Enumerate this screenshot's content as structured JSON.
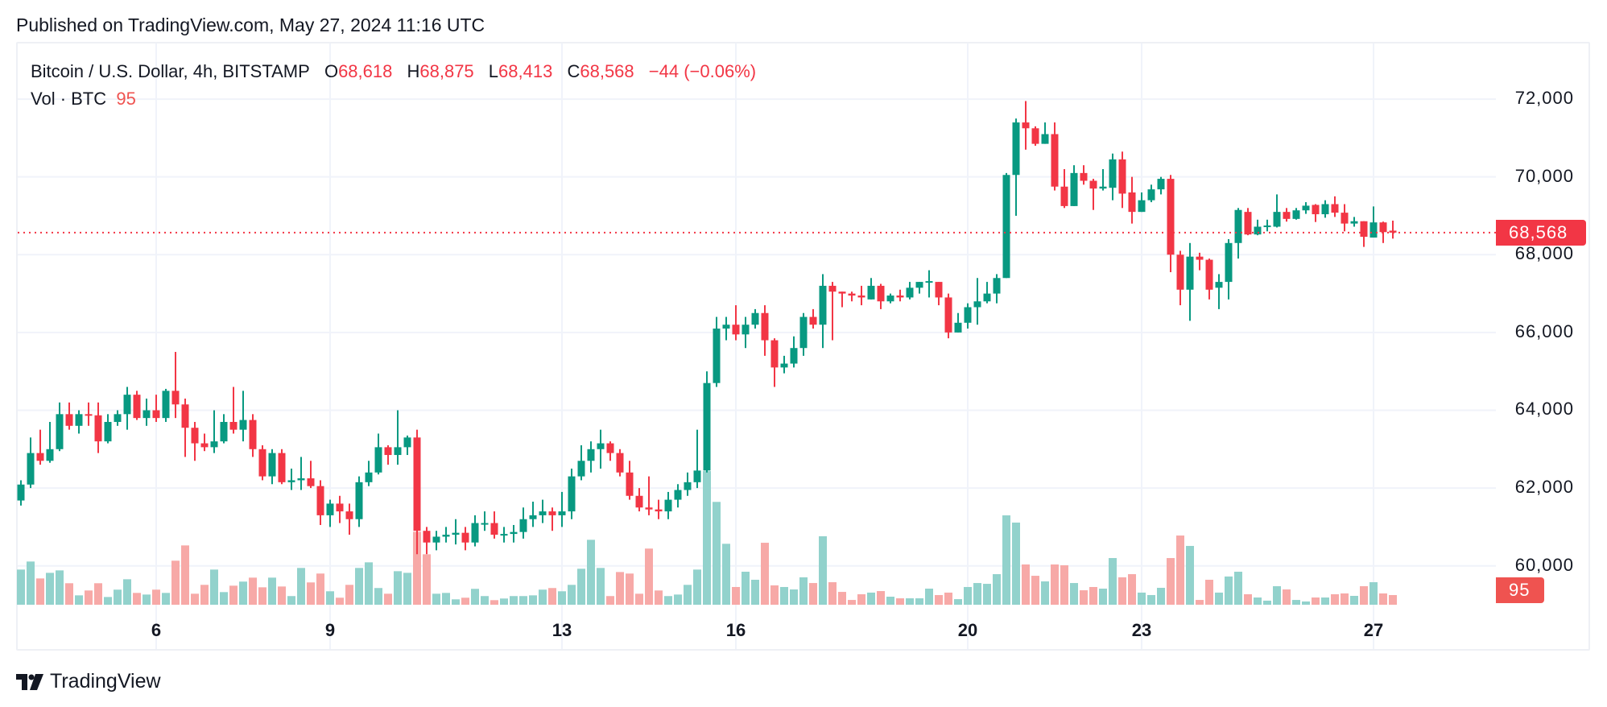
{
  "header": {
    "published": "Published on TradingView.com, May 27, 2024 11:16 UTC"
  },
  "legend": {
    "symbol": "Bitcoin / U.S. Dollar, 4h, BITSTAMP",
    "o_label": "O",
    "o": "68,618",
    "h_label": "H",
    "h": "68,875",
    "l_label": "L",
    "l": "68,413",
    "c_label": "C",
    "c": "68,568",
    "change": "−44 (−0.06%)",
    "vol_label": "Vol · BTC",
    "vol": "95"
  },
  "price_axis": {
    "labels": [
      "72,000",
      "70,000",
      "68,000",
      "66,000",
      "64,000",
      "62,000",
      "60,000"
    ],
    "last_price_label": "68,568",
    "last_volume_label": "95"
  },
  "time_axis": {
    "labels": [
      "6",
      "9",
      "13",
      "16",
      "20",
      "23",
      "27"
    ]
  },
  "brand": {
    "name": "TradingView",
    "logo_icon": "tradingview-logo-icon"
  },
  "colors": {
    "up": "#089981",
    "down": "#F23645",
    "up_volume": "#92d2cc",
    "down_volume": "#f7a9a7",
    "volume_badge": "#ef5350",
    "grid": "#f0f3fa"
  },
  "chart_data": {
    "type": "candlestick",
    "symbol": "Bitcoin / U.S. Dollar",
    "interval": "4h",
    "exchange": "BITSTAMP",
    "ylim": [
      59000,
      73430
    ],
    "y_ticks": [
      72000,
      70000,
      68000,
      66000,
      64000,
      62000,
      60000
    ],
    "volume_ylim": [
      0,
      1580
    ],
    "last_price": 68568,
    "last_volume": 95,
    "grid": true,
    "x_ticks": [
      {
        "label": "6",
        "date": "2024-05-06 00:00"
      },
      {
        "label": "9",
        "date": "2024-05-09 00:00"
      },
      {
        "label": "13",
        "date": "2024-05-13 00:00"
      },
      {
        "label": "16",
        "date": "2024-05-16 00:00"
      },
      {
        "label": "20",
        "date": "2024-05-20 00:00"
      },
      {
        "label": "23",
        "date": "2024-05-23 00:00"
      },
      {
        "label": "27",
        "date": "2024-05-27 00:00"
      }
    ],
    "columns": [
      "time",
      "open",
      "high",
      "low",
      "close",
      "volume"
    ],
    "candles": [
      [
        "2024-05-03 16:00",
        61680,
        62200,
        61550,
        62090,
        345
      ],
      [
        "2024-05-03 20:00",
        62090,
        63300,
        62000,
        62900,
        424
      ],
      [
        "2024-05-04 00:00",
        62900,
        63500,
        62600,
        62700,
        258
      ],
      [
        "2024-05-04 04:00",
        62700,
        63700,
        62650,
        63000,
        313
      ],
      [
        "2024-05-04 08:00",
        63000,
        64200,
        62950,
        63900,
        337
      ],
      [
        "2024-05-04 12:00",
        63900,
        64200,
        63500,
        63600,
        211
      ],
      [
        "2024-05-04 16:00",
        63600,
        64000,
        63400,
        63900,
        92
      ],
      [
        "2024-05-04 20:00",
        63900,
        64200,
        63600,
        63870,
        140
      ],
      [
        "2024-05-05 00:00",
        63870,
        64200,
        62900,
        63200,
        211
      ],
      [
        "2024-05-05 04:00",
        63200,
        63900,
        63150,
        63700,
        76
      ],
      [
        "2024-05-05 08:00",
        63700,
        64000,
        63600,
        63900,
        148
      ],
      [
        "2024-05-05 12:00",
        63900,
        64600,
        63500,
        64400,
        250
      ],
      [
        "2024-05-05 16:00",
        64400,
        64500,
        63750,
        63800,
        116
      ],
      [
        "2024-05-05 20:00",
        63800,
        64300,
        63600,
        64000,
        100
      ],
      [
        "2024-05-06 00:00",
        64000,
        64400,
        63700,
        63800,
        148
      ],
      [
        "2024-05-06 04:00",
        63800,
        64550,
        63700,
        64500,
        116
      ],
      [
        "2024-05-06 08:00",
        64500,
        65500,
        63800,
        64150,
        432
      ],
      [
        "2024-05-06 12:00",
        64150,
        64300,
        62800,
        63550,
        582
      ],
      [
        "2024-05-06 16:00",
        63550,
        63700,
        62700,
        63150,
        108
      ],
      [
        "2024-05-06 20:00",
        63150,
        63400,
        62950,
        63050,
        195
      ],
      [
        "2024-05-07 00:00",
        63050,
        64000,
        62900,
        63200,
        345
      ],
      [
        "2024-05-07 04:00",
        63200,
        63900,
        63150,
        63700,
        124
      ],
      [
        "2024-05-07 08:00",
        63700,
        64600,
        63400,
        63500,
        187
      ],
      [
        "2024-05-07 12:00",
        63500,
        64500,
        63200,
        63750,
        227
      ],
      [
        "2024-05-07 16:00",
        63750,
        63900,
        62800,
        63000,
        266
      ],
      [
        "2024-05-07 20:00",
        63000,
        63100,
        62200,
        62300,
        171
      ],
      [
        "2024-05-08 00:00",
        62300,
        63000,
        62100,
        62900,
        266
      ],
      [
        "2024-05-08 04:00",
        62900,
        63000,
        62100,
        62150,
        179
      ],
      [
        "2024-05-08 08:00",
        62150,
        62500,
        61950,
        62200,
        85
      ],
      [
        "2024-05-08 12:00",
        62200,
        62800,
        61950,
        62250,
        361
      ],
      [
        "2024-05-08 16:00",
        62250,
        62700,
        62000,
        62050,
        219
      ],
      [
        "2024-05-08 20:00",
        62050,
        62200,
        61050,
        61300,
        306
      ],
      [
        "2024-05-09 00:00",
        61300,
        61700,
        61000,
        61600,
        132
      ],
      [
        "2024-05-09 04:00",
        61600,
        61800,
        61100,
        61400,
        69
      ],
      [
        "2024-05-09 08:00",
        61400,
        61600,
        60800,
        61200,
        195
      ],
      [
        "2024-05-09 12:00",
        61200,
        62300,
        61000,
        62150,
        361
      ],
      [
        "2024-05-09 16:00",
        62150,
        62700,
        62050,
        62400,
        416
      ],
      [
        "2024-05-09 20:00",
        62400,
        63400,
        62350,
        63050,
        164
      ],
      [
        "2024-05-10 00:00",
        63050,
        63100,
        62600,
        62850,
        108
      ],
      [
        "2024-05-10 04:00",
        62850,
        64000,
        62600,
        63050,
        329
      ],
      [
        "2024-05-10 08:00",
        63050,
        63350,
        62850,
        63300,
        313
      ],
      [
        "2024-05-10 12:00",
        63300,
        63500,
        60300,
        60900,
        716
      ],
      [
        "2024-05-10 16:00",
        60900,
        61000,
        60300,
        60600,
        495
      ],
      [
        "2024-05-10 20:00",
        60600,
        60900,
        60400,
        60750,
        108
      ],
      [
        "2024-05-11 00:00",
        60750,
        61000,
        60600,
        60800,
        116
      ],
      [
        "2024-05-11 04:00",
        60800,
        61200,
        60550,
        60850,
        53
      ],
      [
        "2024-05-11 08:00",
        60850,
        61000,
        60400,
        60600,
        69
      ],
      [
        "2024-05-11 12:00",
        60600,
        61300,
        60500,
        61100,
        156
      ],
      [
        "2024-05-11 16:00",
        61100,
        61400,
        60900,
        61100,
        85
      ],
      [
        "2024-05-11 20:00",
        61100,
        61400,
        60700,
        60800,
        45
      ],
      [
        "2024-05-12 00:00",
        60800,
        61000,
        60600,
        60820,
        61
      ],
      [
        "2024-05-12 04:00",
        60820,
        61050,
        60600,
        60870,
        85
      ],
      [
        "2024-05-12 08:00",
        60870,
        61500,
        60700,
        61200,
        85
      ],
      [
        "2024-05-12 12:00",
        61200,
        61650,
        61000,
        61300,
        92
      ],
      [
        "2024-05-12 16:00",
        61300,
        61700,
        61100,
        61400,
        148
      ],
      [
        "2024-05-12 20:00",
        61400,
        61500,
        60900,
        61300,
        164
      ],
      [
        "2024-05-13 00:00",
        61300,
        61900,
        61000,
        61400,
        132
      ],
      [
        "2024-05-13 04:00",
        61400,
        62500,
        61200,
        62300,
        195
      ],
      [
        "2024-05-13 08:00",
        62300,
        63100,
        62200,
        62700,
        353
      ],
      [
        "2024-05-13 12:00",
        62700,
        63200,
        62400,
        63000,
        637
      ],
      [
        "2024-05-13 16:00",
        63000,
        63500,
        62500,
        63150,
        361
      ],
      [
        "2024-05-13 20:00",
        63150,
        63200,
        62700,
        62900,
        85
      ],
      [
        "2024-05-14 00:00",
        62900,
        63000,
        62300,
        62400,
        321
      ],
      [
        "2024-05-14 04:00",
        62400,
        62700,
        61700,
        61800,
        306
      ],
      [
        "2024-05-14 08:00",
        61800,
        62000,
        61400,
        61500,
        108
      ],
      [
        "2024-05-14 12:00",
        61500,
        62300,
        61300,
        61450,
        551
      ],
      [
        "2024-05-14 16:00",
        61450,
        61700,
        61200,
        61400,
        140
      ],
      [
        "2024-05-14 20:00",
        61400,
        61900,
        61200,
        61700,
        85
      ],
      [
        "2024-05-15 00:00",
        61700,
        62100,
        61500,
        61950,
        100
      ],
      [
        "2024-05-15 04:00",
        61950,
        62400,
        61800,
        62150,
        195
      ],
      [
        "2024-05-15 08:00",
        62150,
        63500,
        62000,
        62450,
        345
      ],
      [
        "2024-05-15 12:00",
        62450,
        65000,
        62400,
        64700,
        1311
      ],
      [
        "2024-05-15 16:00",
        64700,
        66400,
        64600,
        66100,
        1009
      ],
      [
        "2024-05-15 20:00",
        66100,
        66400,
        65800,
        66200,
        598
      ],
      [
        "2024-05-16 00:00",
        66200,
        66700,
        65800,
        65950,
        174
      ],
      [
        "2024-05-16 04:00",
        65950,
        66400,
        65600,
        66200,
        324
      ],
      [
        "2024-05-16 08:00",
        66200,
        66600,
        66100,
        66500,
        245
      ],
      [
        "2024-05-16 12:00",
        66500,
        66700,
        65400,
        65800,
        608
      ],
      [
        "2024-05-16 16:00",
        65800,
        65850,
        64600,
        65100,
        190
      ],
      [
        "2024-05-16 20:00",
        65100,
        65400,
        64950,
        65200,
        174
      ],
      [
        "2024-05-17 00:00",
        65200,
        65900,
        65100,
        65600,
        150
      ],
      [
        "2024-05-17 04:00",
        65600,
        66500,
        65400,
        66400,
        269
      ],
      [
        "2024-05-17 08:00",
        66400,
        66600,
        66100,
        66200,
        213
      ],
      [
        "2024-05-17 12:00",
        66200,
        67500,
        65600,
        67200,
        672
      ],
      [
        "2024-05-17 16:00",
        67200,
        67300,
        65800,
        67050,
        221
      ],
      [
        "2024-05-17 20:00",
        67050,
        67050,
        66650,
        67000,
        126
      ],
      [
        "2024-05-18 00:00",
        67000,
        67050,
        66800,
        66950,
        47
      ],
      [
        "2024-05-18 04:00",
        66950,
        67200,
        66700,
        66900,
        103
      ],
      [
        "2024-05-18 08:00",
        66850,
        67400,
        66850,
        67200,
        119
      ],
      [
        "2024-05-18 12:00",
        67200,
        67250,
        66600,
        66800,
        134
      ],
      [
        "2024-05-18 16:00",
        66800,
        67000,
        66750,
        66950,
        79
      ],
      [
        "2024-05-18 20:00",
        66950,
        67100,
        66800,
        66900,
        63
      ],
      [
        "2024-05-19 00:00",
        66900,
        67300,
        66850,
        67150,
        63
      ],
      [
        "2024-05-19 04:00",
        67150,
        67300,
        67000,
        67300,
        63
      ],
      [
        "2024-05-19 08:00",
        67300,
        67600,
        66900,
        67320,
        158
      ],
      [
        "2024-05-19 12:00",
        67300,
        67300,
        66700,
        66900,
        95
      ],
      [
        "2024-05-19 16:00",
        66900,
        67000,
        65850,
        66000,
        119
      ],
      [
        "2024-05-19 20:00",
        66000,
        66500,
        66000,
        66250,
        55
      ],
      [
        "2024-05-20 00:00",
        66250,
        66750,
        66100,
        66650,
        174
      ],
      [
        "2024-05-20 04:00",
        66650,
        67400,
        66200,
        66800,
        213
      ],
      [
        "2024-05-20 08:00",
        66800,
        67300,
        66750,
        67000,
        205
      ],
      [
        "2024-05-20 12:00",
        67000,
        67500,
        66750,
        67400,
        300
      ],
      [
        "2024-05-20 16:00",
        67400,
        70100,
        67400,
        70050,
        877
      ],
      [
        "2024-05-20 20:00",
        70050,
        71500,
        69000,
        71400,
        806
      ],
      [
        "2024-05-21 00:00",
        71400,
        71950,
        70700,
        71250,
        395
      ],
      [
        "2024-05-21 04:00",
        71250,
        71300,
        70800,
        70850,
        284
      ],
      [
        "2024-05-21 08:00",
        70850,
        71400,
        70850,
        71100,
        229
      ],
      [
        "2024-05-21 12:00",
        71100,
        71400,
        69650,
        69750,
        395
      ],
      [
        "2024-05-21 16:00",
        69750,
        70200,
        69200,
        69250,
        387
      ],
      [
        "2024-05-21 20:00",
        69250,
        70300,
        69250,
        70100,
        213
      ],
      [
        "2024-05-22 00:00",
        70100,
        70300,
        69800,
        69900,
        142
      ],
      [
        "2024-05-22 04:00",
        69900,
        69950,
        69150,
        69700,
        174
      ],
      [
        "2024-05-22 08:00",
        69700,
        70200,
        69650,
        69750,
        158
      ],
      [
        "2024-05-22 12:00",
        69720,
        70600,
        69400,
        70450,
        458
      ],
      [
        "2024-05-22 16:00",
        70450,
        70650,
        69200,
        69570,
        269
      ],
      [
        "2024-05-22 20:00",
        69600,
        70000,
        68800,
        69100,
        300
      ],
      [
        "2024-05-23 00:00",
        69100,
        69600,
        69100,
        69400,
        119
      ],
      [
        "2024-05-23 04:00",
        69400,
        69800,
        69350,
        69680,
        95
      ],
      [
        "2024-05-23 08:00",
        69680,
        70000,
        69550,
        69950,
        166
      ],
      [
        "2024-05-23 12:00",
        69950,
        70050,
        67550,
        68000,
        458
      ],
      [
        "2024-05-23 16:00",
        68000,
        68100,
        66700,
        67100,
        679
      ],
      [
        "2024-05-23 20:00",
        67100,
        68300,
        66300,
        67950,
        577
      ],
      [
        "2024-05-24 00:00",
        67950,
        68050,
        67600,
        67870,
        47
      ],
      [
        "2024-05-24 04:00",
        67870,
        67900,
        66850,
        67100,
        245
      ],
      [
        "2024-05-24 08:00",
        67150,
        67500,
        66600,
        67300,
        119
      ],
      [
        "2024-05-24 12:00",
        67300,
        68400,
        66850,
        68300,
        277
      ],
      [
        "2024-05-24 16:00",
        68300,
        69200,
        67900,
        69150,
        324
      ],
      [
        "2024-05-24 20:00",
        69100,
        69200,
        68500,
        68520,
        103
      ],
      [
        "2024-05-25 00:00",
        68520,
        68900,
        68500,
        68720,
        71
      ],
      [
        "2024-05-25 04:00",
        68720,
        68900,
        68600,
        68750,
        40
      ],
      [
        "2024-05-25 08:00",
        68720,
        69550,
        68700,
        69100,
        182
      ],
      [
        "2024-05-25 12:00",
        69100,
        69200,
        68850,
        68920,
        150
      ],
      [
        "2024-05-25 16:00",
        68920,
        69200,
        68900,
        69140,
        47
      ],
      [
        "2024-05-25 20:00",
        69140,
        69350,
        69050,
        69260,
        32
      ],
      [
        "2024-05-26 00:00",
        69280,
        69300,
        68840,
        69040,
        71
      ],
      [
        "2024-05-26 04:00",
        69040,
        69400,
        68950,
        69300,
        71
      ],
      [
        "2024-05-26 08:00",
        69300,
        69500,
        68970,
        69080,
        103
      ],
      [
        "2024-05-26 12:00",
        69080,
        69300,
        68600,
        68800,
        111
      ],
      [
        "2024-05-26 16:00",
        68800,
        68970,
        68720,
        68860,
        87
      ],
      [
        "2024-05-26 20:00",
        68860,
        68860,
        68200,
        68460,
        182
      ],
      [
        "2024-05-27 00:00",
        68440,
        69240,
        68440,
        68830,
        221
      ],
      [
        "2024-05-27 04:00",
        68830,
        68850,
        68300,
        68580,
        111
      ],
      [
        "2024-05-27 08:00",
        68618,
        68875,
        68413,
        68568,
        95
      ]
    ]
  }
}
